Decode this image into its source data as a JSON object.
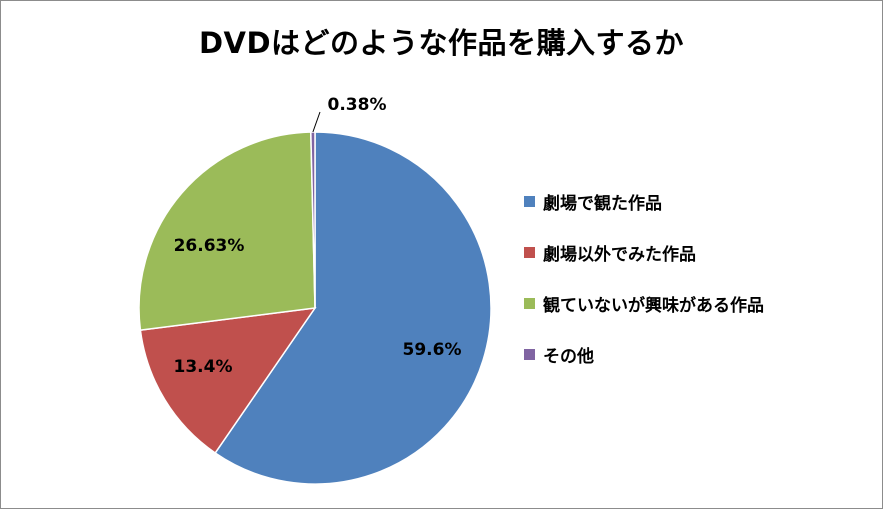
{
  "chart_data": {
    "type": "pie",
    "title": "DVDはどのような作品を購入するか",
    "slices": [
      {
        "name": "劇場で観た作品",
        "value": 59.6,
        "label": "59.6%",
        "color": "#4f81bd"
      },
      {
        "name": "劇場以外でみた作品",
        "value": 13.4,
        "label": "13.4%",
        "color": "#c0504d"
      },
      {
        "name": "観ていないが興味がある作品",
        "value": 26.63,
        "label": "26.63%",
        "color": "#9bbb59"
      },
      {
        "name": "その他",
        "value": 0.38,
        "label": "0.38%",
        "color": "#8064a2"
      }
    ],
    "legend_position": "right"
  }
}
